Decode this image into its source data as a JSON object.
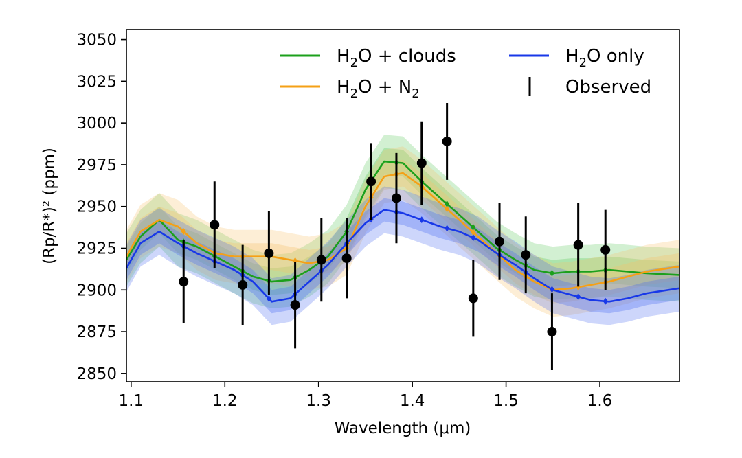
{
  "chart_data": {
    "type": "line",
    "xlabel": "Wavelength (μm)",
    "ylabel": "(Rp/R*)² (ppm)",
    "xlim": [
      1.095,
      1.685
    ],
    "ylim": [
      2845,
      3056
    ],
    "xticks": [
      {
        "value": 1.1,
        "label": "1.1"
      },
      {
        "value": 1.2,
        "label": "1.2"
      },
      {
        "value": 1.3,
        "label": "1.3"
      },
      {
        "value": 1.4,
        "label": "1.4"
      },
      {
        "value": 1.5,
        "label": "1.5"
      },
      {
        "value": 1.6,
        "label": "1.6"
      }
    ],
    "yticks": [
      {
        "value": 2850,
        "label": "2850"
      },
      {
        "value": 2875,
        "label": "2875"
      },
      {
        "value": 2900,
        "label": "2900"
      },
      {
        "value": 2925,
        "label": "2925"
      },
      {
        "value": 2950,
        "label": "2950"
      },
      {
        "value": 2975,
        "label": "2975"
      },
      {
        "value": 3000,
        "label": "3000"
      },
      {
        "value": 3025,
        "label": "3025"
      },
      {
        "value": 3050,
        "label": "3050"
      }
    ],
    "grid": false,
    "legend_position": "top-right",
    "x": [
      1.095,
      1.11,
      1.13,
      1.15,
      1.17,
      1.19,
      1.21,
      1.23,
      1.25,
      1.27,
      1.29,
      1.31,
      1.33,
      1.35,
      1.37,
      1.39,
      1.41,
      1.43,
      1.45,
      1.47,
      1.49,
      1.51,
      1.53,
      1.55,
      1.57,
      1.59,
      1.61,
      1.63,
      1.65,
      1.685
    ],
    "series": [
      {
        "name_main": "H",
        "name_sub": "2",
        "name_rest": "O + clouds",
        "color": "#1ca01c",
        "values": [
          2918,
          2932,
          2942,
          2930,
          2926,
          2920,
          2914,
          2908,
          2905,
          2906,
          2912,
          2920,
          2935,
          2960,
          2977,
          2976,
          2965,
          2955,
          2945,
          2935,
          2925,
          2918,
          2912,
          2910,
          2911,
          2911,
          2912,
          2911,
          2910,
          2909
        ],
        "band_width": 16,
        "band_color": "#5cc95c"
      },
      {
        "name_main": "H",
        "name_sub": "2",
        "name_rest": "O + N",
        "name_sub2": "2",
        "color": "#f5a016",
        "values": [
          2920,
          2935,
          2942,
          2938,
          2928,
          2922,
          2920,
          2920,
          2920,
          2918,
          2916,
          2918,
          2925,
          2950,
          2968,
          2970,
          2962,
          2952,
          2942,
          2932,
          2922,
          2912,
          2905,
          2900,
          2901,
          2903,
          2905,
          2908,
          2911,
          2914
        ],
        "band_width": 16,
        "band_color": "#f7c16a"
      },
      {
        "name_main": "H",
        "name_sub": "2",
        "name_rest": "O only",
        "color": "#1838e8",
        "values": [
          2913,
          2928,
          2935,
          2928,
          2922,
          2917,
          2912,
          2905,
          2893,
          2895,
          2905,
          2915,
          2928,
          2940,
          2948,
          2946,
          2942,
          2938,
          2935,
          2930,
          2922,
          2915,
          2907,
          2900,
          2897,
          2894,
          2893,
          2895,
          2898,
          2901
        ],
        "band_width": 14,
        "band_color": "#4a6cf2"
      }
    ],
    "observed": {
      "name": "Observed",
      "color": "#000000",
      "points": [
        {
          "x": 1.156,
          "y": 2905,
          "err": 25
        },
        {
          "x": 1.189,
          "y": 2939,
          "err": 26
        },
        {
          "x": 1.219,
          "y": 2903,
          "err": 24
        },
        {
          "x": 1.247,
          "y": 2922,
          "err": 25
        },
        {
          "x": 1.275,
          "y": 2891,
          "err": 26
        },
        {
          "x": 1.303,
          "y": 2918,
          "err": 25
        },
        {
          "x": 1.33,
          "y": 2919,
          "err": 24
        },
        {
          "x": 1.356,
          "y": 2965,
          "err": 23
        },
        {
          "x": 1.383,
          "y": 2955,
          "err": 27
        },
        {
          "x": 1.41,
          "y": 2976,
          "err": 25
        },
        {
          "x": 1.437,
          "y": 2989,
          "err": 23
        },
        {
          "x": 1.465,
          "y": 2895,
          "err": 23
        },
        {
          "x": 1.493,
          "y": 2929,
          "err": 23
        },
        {
          "x": 1.521,
          "y": 2921,
          "err": 23
        },
        {
          "x": 1.549,
          "y": 2875,
          "err": 23
        },
        {
          "x": 1.577,
          "y": 2927,
          "err": 25
        },
        {
          "x": 1.606,
          "y": 2924,
          "err": 24
        }
      ]
    }
  }
}
